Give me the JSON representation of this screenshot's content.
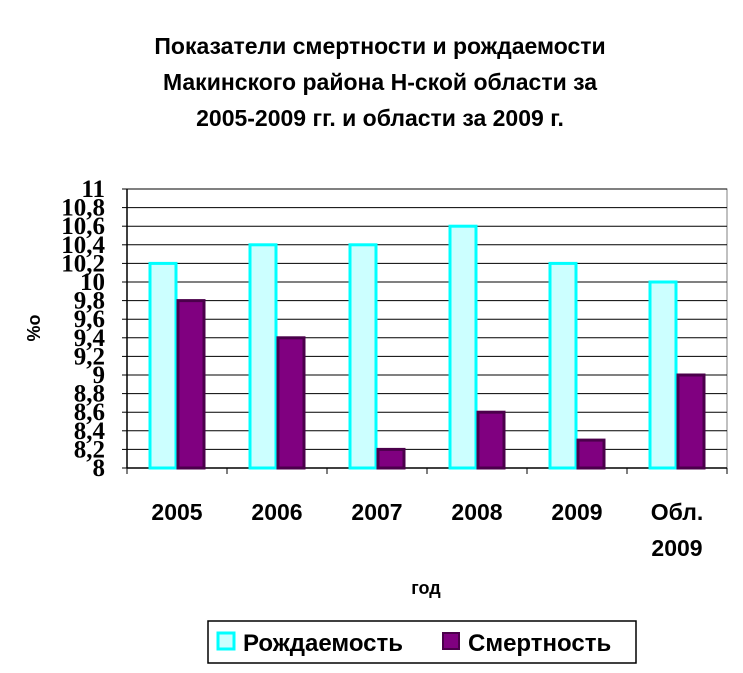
{
  "chart_data": {
    "type": "bar",
    "title_lines": [
      "Показатели смертности и рождаемости",
      "Макинского района Н-ской области за",
      "2005-2009 гг. и области за 2009 г."
    ],
    "xlabel": "год",
    "ylabel": "%о",
    "categories": [
      [
        "2005"
      ],
      [
        "2006"
      ],
      [
        "2007"
      ],
      [
        "2008"
      ],
      [
        "2009"
      ],
      [
        "Обл.",
        "2009"
      ]
    ],
    "ylim": [
      8,
      11
    ],
    "yticks": [
      "8",
      "8,2",
      "8,4",
      "8,6",
      "8,8",
      "9",
      "9,2",
      "9,4",
      "9,6",
      "9,8",
      "10",
      "10,2",
      "10,4",
      "10,6",
      "10,8",
      "11"
    ],
    "grid": true,
    "legend_position": "bottom",
    "series": [
      {
        "name": "Рождаемость",
        "values": [
          10.2,
          10.4,
          10.4,
          10.6,
          10.2,
          10.0
        ],
        "fill": "#CCFFFF",
        "stroke": "#00FFFF"
      },
      {
        "name": "Смертность",
        "values": [
          9.8,
          9.4,
          8.2,
          8.6,
          8.3,
          9.0
        ],
        "fill": "#800080",
        "stroke": "#4B004B"
      }
    ]
  }
}
